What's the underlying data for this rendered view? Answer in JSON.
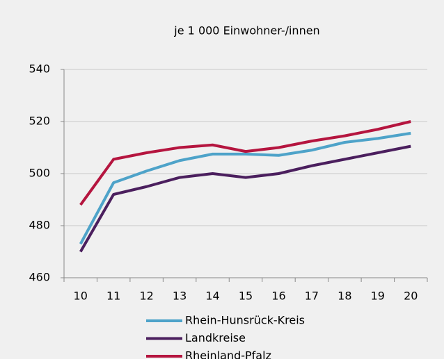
{
  "chart_data": {
    "type": "line",
    "title": "je 1 000 Einwohner-/innen",
    "categories": [
      "10",
      "11",
      "12",
      "13",
      "14",
      "15",
      "16",
      "17",
      "18",
      "19",
      "20"
    ],
    "series": [
      {
        "name": "Rhein-Hunsrück-Kreis",
        "color": "#4ea3c9",
        "values": [
          473,
          496.5,
          501,
          505,
          507.5,
          507.5,
          507,
          509,
          512,
          513.5,
          515.5
        ]
      },
      {
        "name": "Landkreise",
        "color": "#4b1f5e",
        "values": [
          470,
          492,
          495,
          498.5,
          500,
          498.5,
          500,
          503,
          505.5,
          508,
          510.5
        ]
      },
      {
        "name": "Rheinland-Pfalz",
        "color": "#b5153f",
        "values": [
          488,
          505.5,
          508,
          510,
          511,
          508.5,
          510,
          512.5,
          514.5,
          517,
          520
        ]
      }
    ],
    "ylim": [
      460,
      540
    ],
    "yticks": [
      460,
      480,
      500,
      520,
      540
    ],
    "grid": true
  }
}
